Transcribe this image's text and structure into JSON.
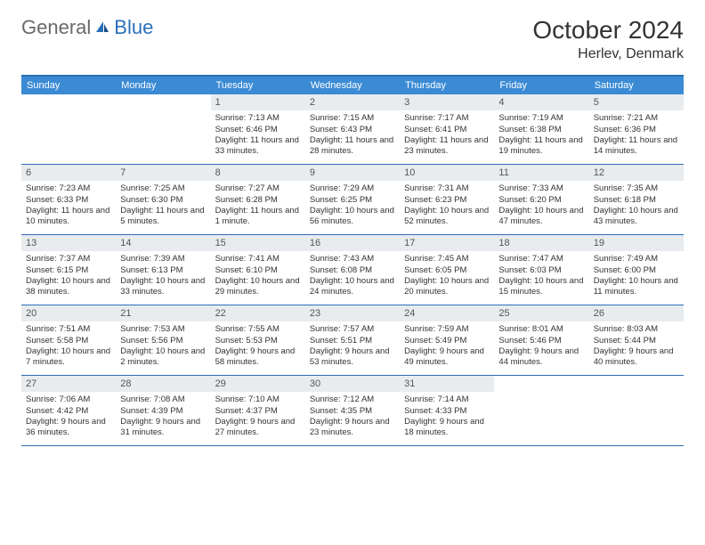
{
  "logo": {
    "text1": "General",
    "text2": "Blue"
  },
  "title": "October 2024",
  "location": "Herlev, Denmark",
  "colors": {
    "header_bg": "#3b8bd4",
    "border": "#2b6fb5",
    "daynum_bg": "#e8ecef",
    "text": "#333333",
    "logo_gray": "#6a6a6a",
    "logo_blue": "#2b6fb5"
  },
  "weekdays": [
    "Sunday",
    "Monday",
    "Tuesday",
    "Wednesday",
    "Thursday",
    "Friday",
    "Saturday"
  ],
  "weeks": [
    [
      null,
      null,
      {
        "n": "1",
        "sr": "7:13 AM",
        "ss": "6:46 PM",
        "dl": "11 hours and 33 minutes."
      },
      {
        "n": "2",
        "sr": "7:15 AM",
        "ss": "6:43 PM",
        "dl": "11 hours and 28 minutes."
      },
      {
        "n": "3",
        "sr": "7:17 AM",
        "ss": "6:41 PM",
        "dl": "11 hours and 23 minutes."
      },
      {
        "n": "4",
        "sr": "7:19 AM",
        "ss": "6:38 PM",
        "dl": "11 hours and 19 minutes."
      },
      {
        "n": "5",
        "sr": "7:21 AM",
        "ss": "6:36 PM",
        "dl": "11 hours and 14 minutes."
      }
    ],
    [
      {
        "n": "6",
        "sr": "7:23 AM",
        "ss": "6:33 PM",
        "dl": "11 hours and 10 minutes."
      },
      {
        "n": "7",
        "sr": "7:25 AM",
        "ss": "6:30 PM",
        "dl": "11 hours and 5 minutes."
      },
      {
        "n": "8",
        "sr": "7:27 AM",
        "ss": "6:28 PM",
        "dl": "11 hours and 1 minute."
      },
      {
        "n": "9",
        "sr": "7:29 AM",
        "ss": "6:25 PM",
        "dl": "10 hours and 56 minutes."
      },
      {
        "n": "10",
        "sr": "7:31 AM",
        "ss": "6:23 PM",
        "dl": "10 hours and 52 minutes."
      },
      {
        "n": "11",
        "sr": "7:33 AM",
        "ss": "6:20 PM",
        "dl": "10 hours and 47 minutes."
      },
      {
        "n": "12",
        "sr": "7:35 AM",
        "ss": "6:18 PM",
        "dl": "10 hours and 43 minutes."
      }
    ],
    [
      {
        "n": "13",
        "sr": "7:37 AM",
        "ss": "6:15 PM",
        "dl": "10 hours and 38 minutes."
      },
      {
        "n": "14",
        "sr": "7:39 AM",
        "ss": "6:13 PM",
        "dl": "10 hours and 33 minutes."
      },
      {
        "n": "15",
        "sr": "7:41 AM",
        "ss": "6:10 PM",
        "dl": "10 hours and 29 minutes."
      },
      {
        "n": "16",
        "sr": "7:43 AM",
        "ss": "6:08 PM",
        "dl": "10 hours and 24 minutes."
      },
      {
        "n": "17",
        "sr": "7:45 AM",
        "ss": "6:05 PM",
        "dl": "10 hours and 20 minutes."
      },
      {
        "n": "18",
        "sr": "7:47 AM",
        "ss": "6:03 PM",
        "dl": "10 hours and 15 minutes."
      },
      {
        "n": "19",
        "sr": "7:49 AM",
        "ss": "6:00 PM",
        "dl": "10 hours and 11 minutes."
      }
    ],
    [
      {
        "n": "20",
        "sr": "7:51 AM",
        "ss": "5:58 PM",
        "dl": "10 hours and 7 minutes."
      },
      {
        "n": "21",
        "sr": "7:53 AM",
        "ss": "5:56 PM",
        "dl": "10 hours and 2 minutes."
      },
      {
        "n": "22",
        "sr": "7:55 AM",
        "ss": "5:53 PM",
        "dl": "9 hours and 58 minutes."
      },
      {
        "n": "23",
        "sr": "7:57 AM",
        "ss": "5:51 PM",
        "dl": "9 hours and 53 minutes."
      },
      {
        "n": "24",
        "sr": "7:59 AM",
        "ss": "5:49 PM",
        "dl": "9 hours and 49 minutes."
      },
      {
        "n": "25",
        "sr": "8:01 AM",
        "ss": "5:46 PM",
        "dl": "9 hours and 44 minutes."
      },
      {
        "n": "26",
        "sr": "8:03 AM",
        "ss": "5:44 PM",
        "dl": "9 hours and 40 minutes."
      }
    ],
    [
      {
        "n": "27",
        "sr": "7:06 AM",
        "ss": "4:42 PM",
        "dl": "9 hours and 36 minutes."
      },
      {
        "n": "28",
        "sr": "7:08 AM",
        "ss": "4:39 PM",
        "dl": "9 hours and 31 minutes."
      },
      {
        "n": "29",
        "sr": "7:10 AM",
        "ss": "4:37 PM",
        "dl": "9 hours and 27 minutes."
      },
      {
        "n": "30",
        "sr": "7:12 AM",
        "ss": "4:35 PM",
        "dl": "9 hours and 23 minutes."
      },
      {
        "n": "31",
        "sr": "7:14 AM",
        "ss": "4:33 PM",
        "dl": "9 hours and 18 minutes."
      },
      null,
      null
    ]
  ],
  "labels": {
    "sunrise": "Sunrise: ",
    "sunset": "Sunset: ",
    "daylight": "Daylight: "
  }
}
